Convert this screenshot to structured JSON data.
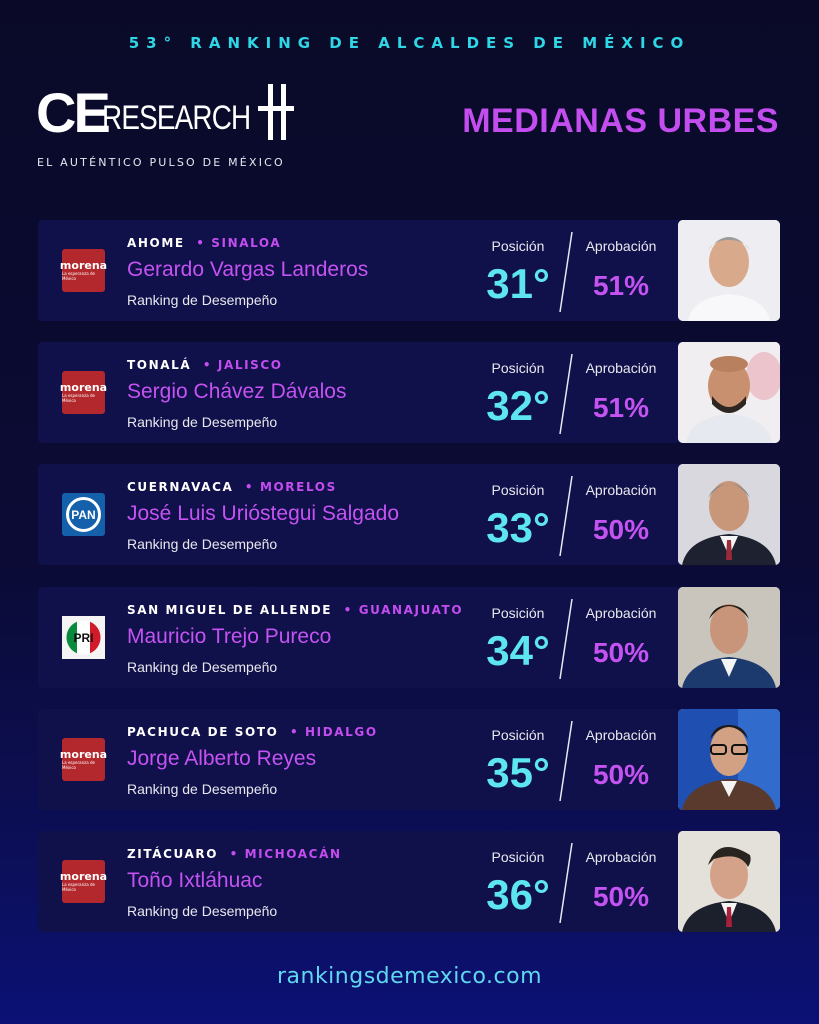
{
  "header": {
    "edition": "53° RANKING DE ALCALDES DE MÉXICO",
    "logo_ce": "CE",
    "logo_research": "RESEARCH",
    "tagline": "EL AUTÉNTICO PULSO DE MÉXICO",
    "section_title": "MEDIANAS URBES"
  },
  "labels": {
    "position": "Posición",
    "approval": "Aprobación",
    "subtitle": "Ranking de Desempeño"
  },
  "party_logos": {
    "morena_word": "morena",
    "morena_small": "La esperanza de México",
    "pan_word": "PAN",
    "pri_word": "PRI"
  },
  "mayors": [
    {
      "city": "AHOME",
      "state": "SINALOA",
      "name": "Gerardo Vargas Landeros",
      "party": "morena",
      "position": "31°",
      "approval": "51%",
      "photo": "portrait-white-shirt-gray-hair"
    },
    {
      "city": "TONALÁ",
      "state": "JALISCO",
      "name": "Sergio Chávez Dávalos",
      "party": "morena",
      "position": "32°",
      "approval": "51%",
      "photo": "portrait-bald-beard"
    },
    {
      "city": "CUERNAVACA",
      "state": "MORELOS",
      "name": "José Luis Urióstegui Salgado",
      "party": "pan",
      "position": "33°",
      "approval": "50%",
      "photo": "portrait-suit-gray-hair"
    },
    {
      "city": "SAN MIGUEL DE ALLENDE",
      "state": "GUANAJUATO",
      "name": "Mauricio Trejo Pureco",
      "party": "pri",
      "position": "34°",
      "approval": "50%",
      "photo": "portrait-blue-suit"
    },
    {
      "city": "PACHUCA DE SOTO",
      "state": "HIDALGO",
      "name": "Jorge Alberto Reyes",
      "party": "morena",
      "position": "35°",
      "approval": "50%",
      "photo": "portrait-glasses-blue-background"
    },
    {
      "city": "ZITÁCUARO",
      "state": "MICHOACÁN",
      "name": "Toño Ixtláhuac",
      "party": "morena",
      "position": "36°",
      "approval": "50%",
      "photo": "portrait-dark-suit-tie"
    }
  ],
  "footer": {
    "url": "rankingsdemexico.com"
  },
  "colors": {
    "accent_cyan": "#5ee6f0",
    "accent_purple": "#c453f2",
    "card_bg": "#10104a",
    "morena_red": "#b3282d",
    "pan_blue": "#1460ab"
  }
}
